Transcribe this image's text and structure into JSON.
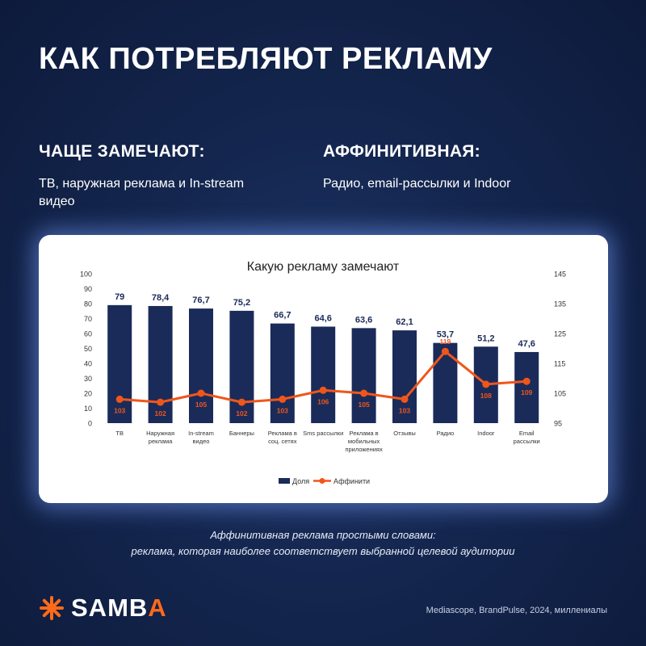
{
  "header": {
    "title": "КАК ПОТРЕБЛЯЮТ РЕКЛАМУ"
  },
  "left_column": {
    "heading": "ЧАЩЕ ЗАМЕЧАЮТ:",
    "text": "ТВ, наружная реклама и In-stream видео"
  },
  "right_column": {
    "heading": "АФФИНИТИВНАЯ:",
    "text": "Радио, email-рассылки и Indoor"
  },
  "note": {
    "line1": "Аффинитивная реклама простыми словами:",
    "line2": "реклама, которая наиболее соответствует выбранной целевой аудитории"
  },
  "footer": {
    "logo_main": "SAMB",
    "logo_accent": "A",
    "logo_icon": "asterisk-icon",
    "source": "Mediascope, BrandPulse, 2024, миллениалы"
  },
  "colors": {
    "bar": "#1a2b5a",
    "line": "#f0561b",
    "accent": "#ff6a1a"
  },
  "chart_data": {
    "type": "bar",
    "title": "Какую рекламу замечают",
    "categories": [
      [
        "ТВ"
      ],
      [
        "Наружная",
        "реклама"
      ],
      [
        "In-stream",
        "видео"
      ],
      [
        "Баннеры"
      ],
      [
        "Реклама в",
        "соц. сетях"
      ],
      [
        "Sms рассылки"
      ],
      [
        "Реклама в",
        "мобильных",
        "приложениях"
      ],
      [
        "Отзывы"
      ],
      [
        "Радио"
      ],
      [
        "Indoor"
      ],
      [
        "Email",
        "рассылки"
      ]
    ],
    "series": [
      {
        "name": "Доля",
        "type": "bar",
        "axis": "left",
        "values": [
          79,
          78.4,
          76.7,
          75.2,
          66.7,
          64.6,
          63.6,
          62.1,
          53.7,
          51.2,
          47.6
        ],
        "labels": [
          "79",
          "78,4",
          "76,7",
          "75,2",
          "66,7",
          "64,6",
          "63,6",
          "62,1",
          "53,7",
          "51,2",
          "47,6"
        ]
      },
      {
        "name": "Аффинити",
        "type": "line",
        "axis": "right",
        "values": [
          103,
          102,
          105,
          102,
          103,
          106,
          105,
          103,
          119,
          108,
          109
        ],
        "labels": [
          "103",
          "102",
          "105",
          "102",
          "103",
          "106",
          "105",
          "103",
          "119",
          "108",
          "109"
        ]
      }
    ],
    "y_left": {
      "min": 0,
      "max": 100,
      "ticks": [
        0,
        10,
        20,
        30,
        40,
        50,
        60,
        70,
        80,
        90,
        100
      ]
    },
    "y_right": {
      "min": 95,
      "max": 145,
      "ticks": [
        95,
        105,
        115,
        125,
        135,
        145
      ]
    },
    "legend_position": "bottom",
    "grid": false
  }
}
